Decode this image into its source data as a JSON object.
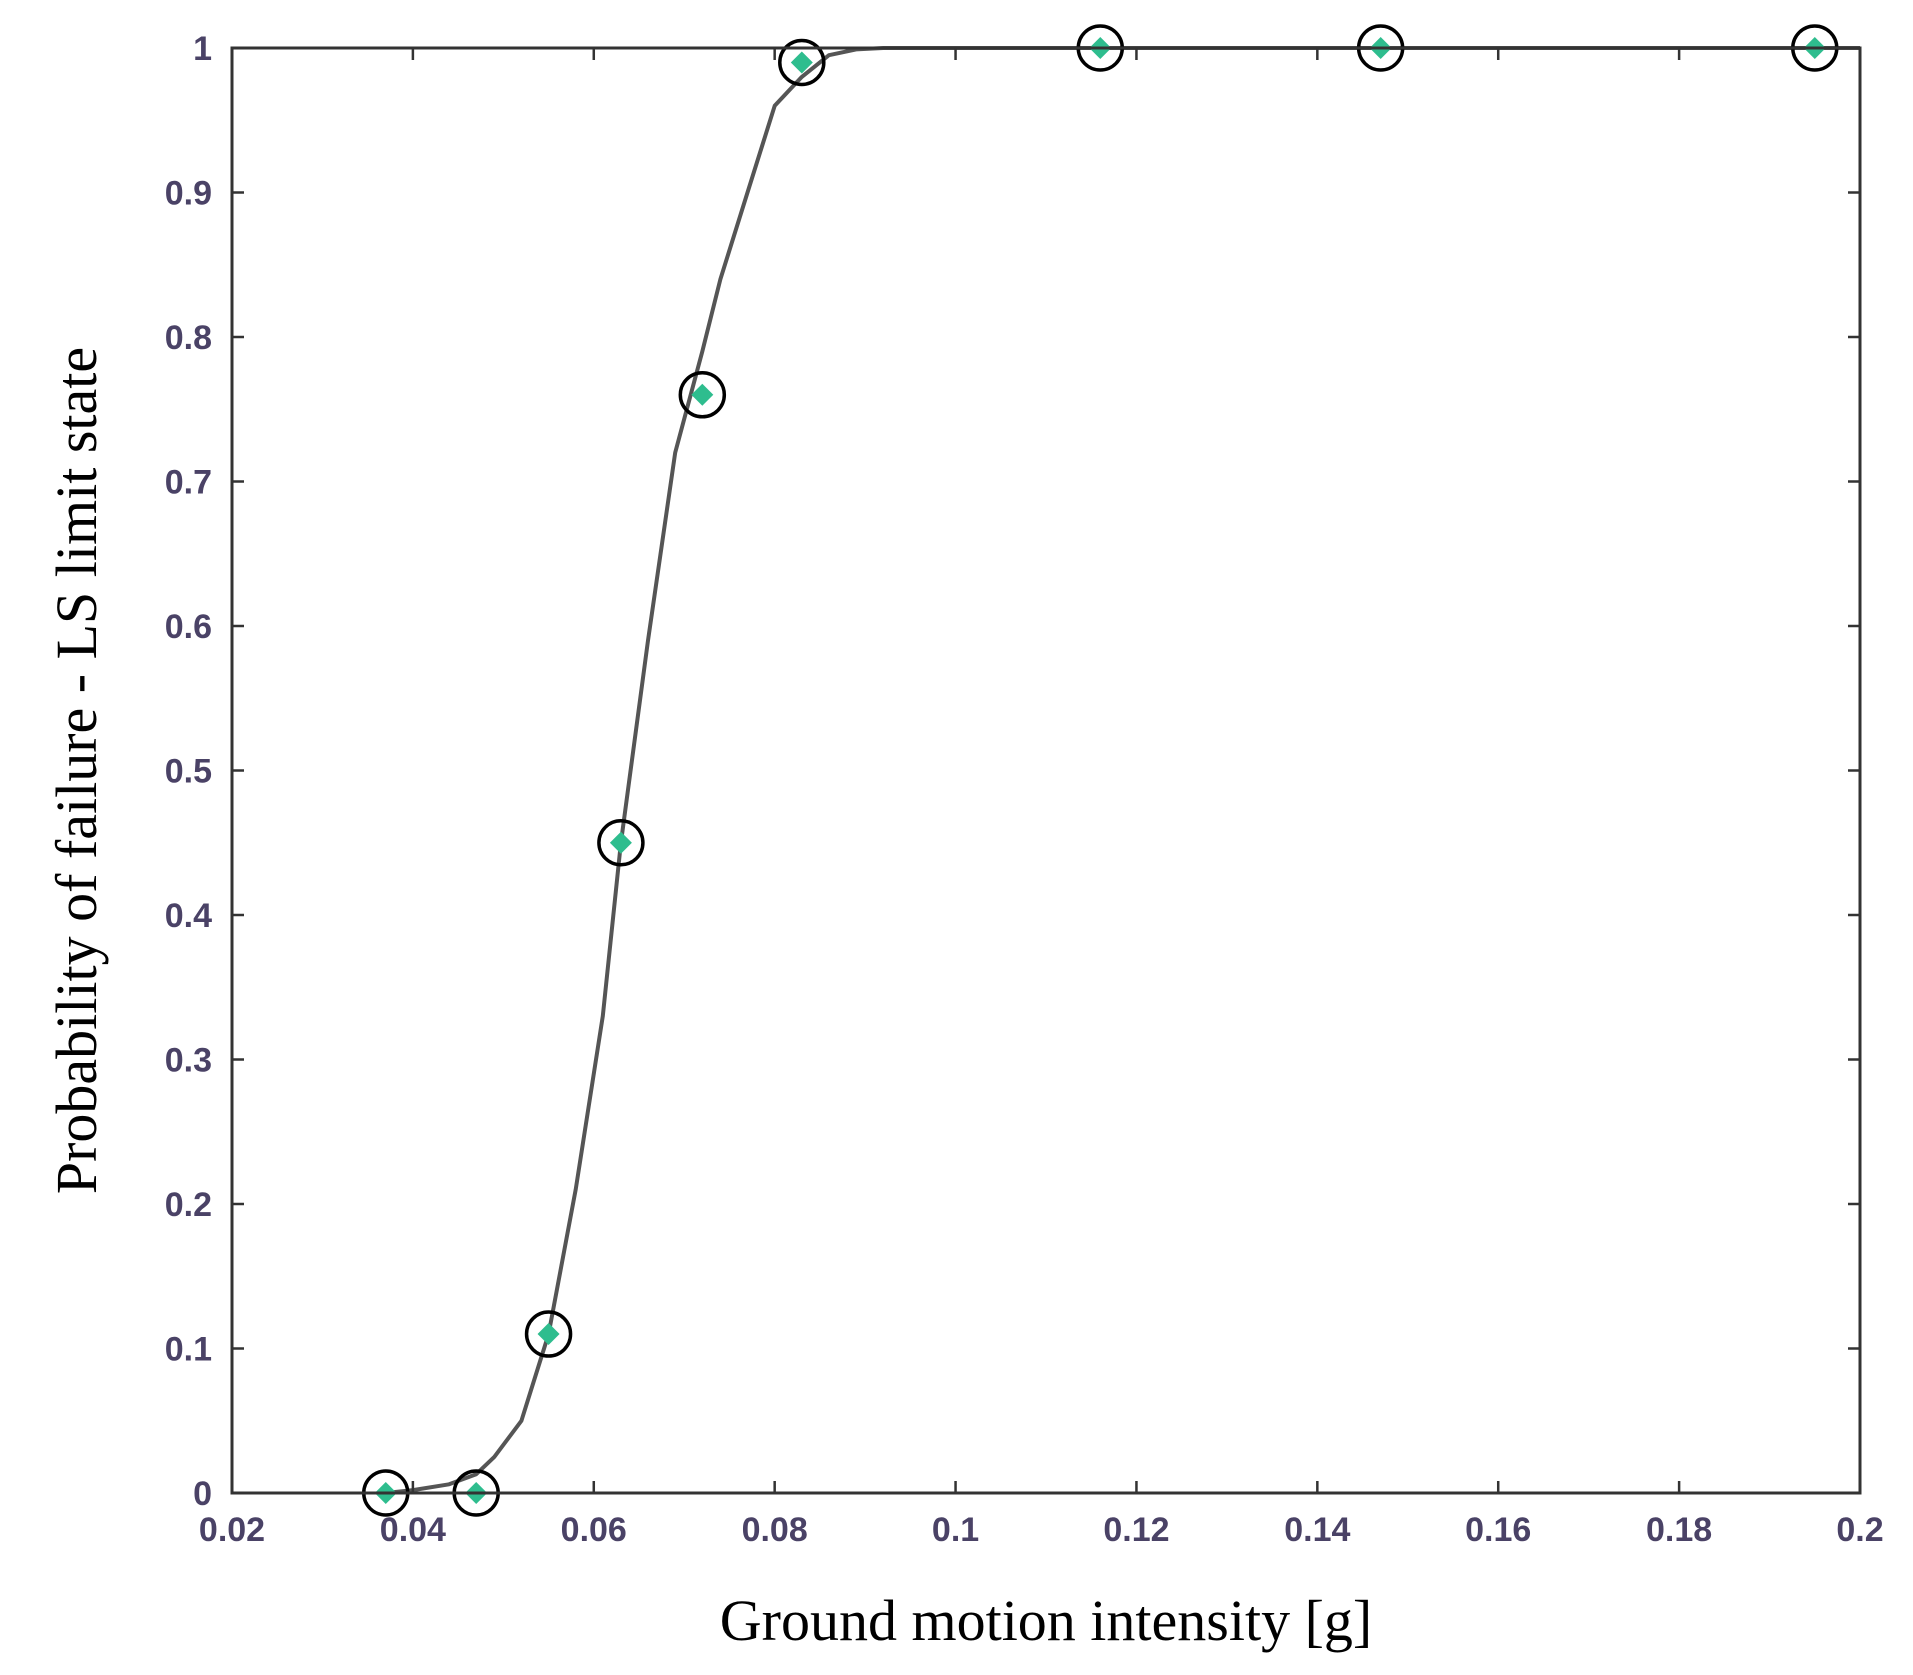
{
  "chart_data": {
    "type": "line",
    "title": "",
    "xlabel": "Ground motion intensity [g]",
    "ylabel": "Probability of failure - LS limit state",
    "xlim": [
      0.02,
      0.2
    ],
    "ylim": [
      0,
      1
    ],
    "grid": false,
    "x_ticks": [
      0.02,
      0.04,
      0.06,
      0.08,
      0.1,
      0.12,
      0.14,
      0.16,
      0.18,
      0.2
    ],
    "x_tick_labels": [
      "0.02",
      "0.04",
      "0.06",
      "0.08",
      "0.1",
      "0.12",
      "0.14",
      "0.16",
      "0.18",
      "0.2"
    ],
    "y_ticks": [
      0,
      0.1,
      0.2,
      0.3,
      0.4,
      0.5,
      0.6,
      0.7,
      0.8,
      0.9,
      1
    ],
    "y_tick_labels": [
      "0",
      "0.1",
      "0.2",
      "0.3",
      "0.4",
      "0.5",
      "0.6",
      "0.7",
      "0.8",
      "0.9",
      "1"
    ],
    "series": [
      {
        "kind": "fitted-curve",
        "color": "#555555",
        "x": [
          0.037,
          0.04,
          0.044,
          0.047,
          0.049,
          0.052,
          0.055,
          0.058,
          0.061,
          0.063,
          0.066,
          0.069,
          0.072,
          0.074,
          0.077,
          0.08,
          0.083,
          0.086,
          0.089,
          0.092,
          0.1,
          0.12,
          0.15,
          0.2
        ],
        "y": [
          0.0,
          0.002,
          0.006,
          0.013,
          0.025,
          0.05,
          0.11,
          0.21,
          0.33,
          0.45,
          0.59,
          0.72,
          0.79,
          0.84,
          0.9,
          0.96,
          0.98,
          0.995,
          0.999,
          1.0,
          1.0,
          1.0,
          1.0,
          1.0
        ]
      },
      {
        "kind": "observed-points",
        "fill_color": "#2ebd8e",
        "ring_color": "#000000",
        "x": [
          0.037,
          0.047,
          0.055,
          0.063,
          0.072,
          0.083,
          0.116,
          0.147,
          0.195
        ],
        "y": [
          0.0,
          0.0,
          0.11,
          0.45,
          0.76,
          0.99,
          1.0,
          1.0,
          1.0
        ]
      }
    ]
  }
}
